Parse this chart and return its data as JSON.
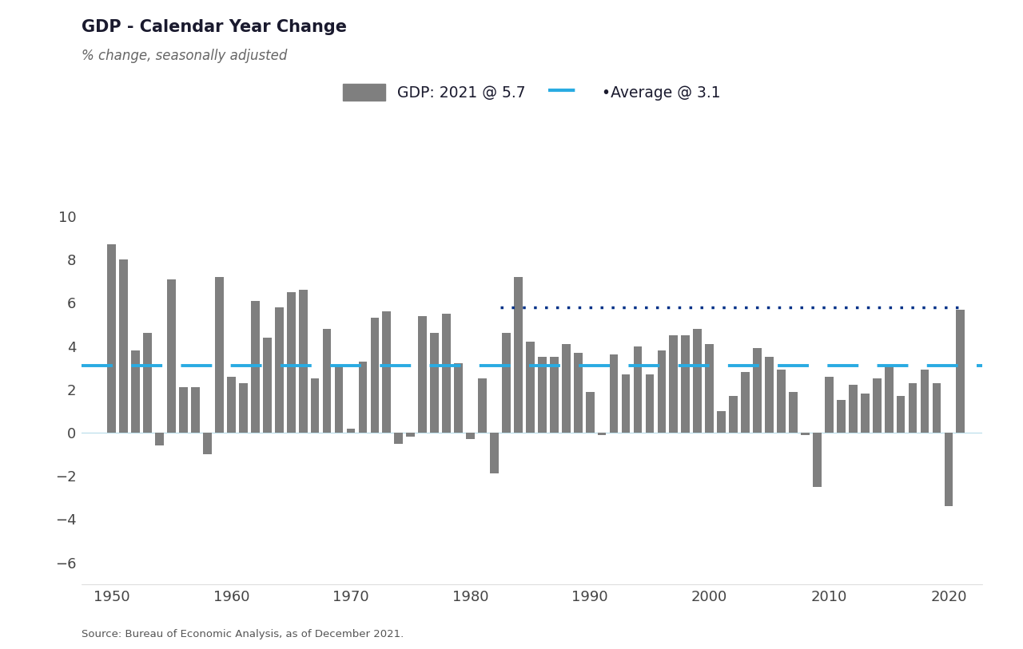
{
  "title": "GDP - Calendar Year Change",
  "subtitle": "% change, seasonally adjusted",
  "source": "Source: Bureau of Economic Analysis, as of December 2021.",
  "legend_gdp": "GDP: 2021 @ 5.7",
  "legend_avg": "·Average @ 3.1",
  "average": 3.1,
  "dotted_line_value": 5.8,
  "dotted_line_start": 1983,
  "years": [
    1950,
    1951,
    1952,
    1953,
    1954,
    1955,
    1956,
    1957,
    1958,
    1959,
    1960,
    1961,
    1962,
    1963,
    1964,
    1965,
    1966,
    1967,
    1968,
    1969,
    1970,
    1971,
    1972,
    1973,
    1974,
    1975,
    1976,
    1977,
    1978,
    1979,
    1980,
    1981,
    1982,
    1983,
    1984,
    1985,
    1986,
    1987,
    1988,
    1989,
    1990,
    1991,
    1992,
    1993,
    1994,
    1995,
    1996,
    1997,
    1998,
    1999,
    2000,
    2001,
    2002,
    2003,
    2004,
    2005,
    2006,
    2007,
    2008,
    2009,
    2010,
    2011,
    2012,
    2013,
    2014,
    2015,
    2016,
    2017,
    2018,
    2019,
    2020,
    2021
  ],
  "values": [
    8.7,
    8.0,
    3.8,
    4.6,
    -0.6,
    7.1,
    2.1,
    2.1,
    -1.0,
    7.2,
    2.6,
    2.3,
    6.1,
    4.4,
    5.8,
    6.5,
    6.6,
    2.5,
    4.8,
    3.1,
    0.2,
    3.3,
    5.3,
    5.6,
    -0.5,
    -0.2,
    5.4,
    4.6,
    5.5,
    3.2,
    -0.3,
    2.5,
    -1.9,
    4.6,
    7.2,
    4.2,
    3.5,
    3.5,
    4.1,
    3.7,
    1.9,
    -0.1,
    3.6,
    2.7,
    4.0,
    2.7,
    3.8,
    4.5,
    4.5,
    4.8,
    4.1,
    1.0,
    1.7,
    2.8,
    3.9,
    3.5,
    2.9,
    1.9,
    -0.1,
    -2.5,
    2.6,
    1.5,
    2.2,
    1.8,
    2.5,
    3.1,
    1.7,
    2.3,
    2.9,
    2.3,
    -3.4,
    5.7
  ],
  "bar_color": "#7f7f7f",
  "avg_line_color": "#29ABE2",
  "dotted_line_color": "#003087",
  "zero_line_color": "#ADD8E6",
  "background_color": "#ffffff",
  "title_color": "#1a1a2e",
  "subtitle_color": "#666666",
  "tick_color": "#444444",
  "source_color": "#555555",
  "ylim": [
    -7,
    11
  ],
  "yticks": [
    -6,
    -4,
    -2,
    0,
    2,
    4,
    6,
    8,
    10
  ],
  "xticks": [
    1950,
    1960,
    1970,
    1980,
    1990,
    2000,
    2010,
    2020
  ],
  "xlim": [
    1947.5,
    2022.8
  ]
}
